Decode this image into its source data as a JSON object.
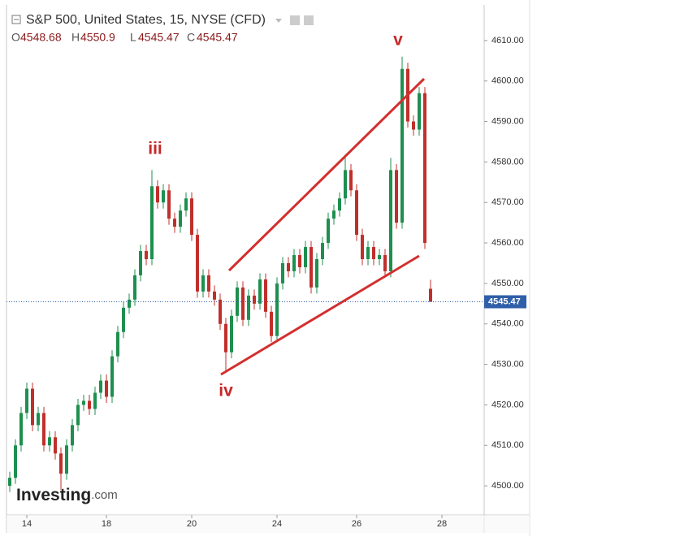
{
  "chart_data": {
    "type": "candlestick",
    "title": "S&P 500, United States, 15, NYSE (CFD)",
    "ohlc_labels": [
      "O",
      "H",
      "L",
      "C"
    ],
    "annotations": [
      "iii",
      "iv",
      "v"
    ],
    "watermark": {
      "brand": "Investing",
      "suffix": ".com"
    },
    "up_color": "#1e8f4e",
    "down_color": "#c0302b",
    "last_price_color": "#2f5fa8",
    "categories": [
      null,
      null,
      null,
      "14",
      null,
      null,
      null,
      null,
      null,
      null,
      null,
      null,
      null,
      null,
      null,
      null,
      null,
      "18",
      null,
      null,
      null,
      null,
      null,
      null,
      null,
      null,
      null,
      null,
      null,
      null,
      null,
      null,
      "20",
      null,
      null,
      null,
      null,
      null,
      null,
      null,
      null,
      null,
      null,
      null,
      null,
      null,
      null,
      "24",
      null,
      null,
      null,
      null,
      null,
      null,
      null,
      null,
      null,
      null,
      null,
      null,
      null,
      "26",
      null,
      null,
      null,
      null,
      null,
      null,
      null,
      null,
      null,
      null,
      null,
      null,
      null,
      null,
      "28",
      null,
      null,
      null,
      null,
      null,
      null,
      null
    ],
    "open": [
      4500,
      4502,
      4510,
      4518,
      4524,
      4515,
      4518,
      4510,
      4512,
      4508,
      4503,
      4510,
      4515,
      4520,
      4521,
      4519,
      4523,
      4526,
      4522,
      4532,
      4538,
      4544,
      4546,
      4552,
      4558,
      4556,
      4574,
      4570,
      4573,
      4566,
      4564,
      4568,
      4571,
      4562,
      4548,
      4552,
      4548,
      4546,
      4540,
      4533,
      4542,
      4549,
      4541,
      4547,
      4545,
      4551,
      4543,
      4537,
      4550,
      4555,
      4553,
      4557,
      4554,
      4559,
      4549,
      4556,
      4560,
      4566,
      4568,
      4571,
      4578,
      4573,
      4562,
      4556,
      4559,
      4556,
      4557,
      4553,
      4578,
      4565,
      4603,
      4590,
      4588,
      4597,
      4548.68,
      null,
      null,
      null,
      null,
      null,
      null,
      null,
      null,
      null
    ],
    "high": [
      4503.5,
      4511.5,
      4519.5,
      4525.5,
      4525.5,
      4519.5,
      4519.5,
      4513.5,
      4513.5,
      4509.5,
      4511.5,
      4516.5,
      4521.5,
      4522.5,
      4522.5,
      4524.5,
      4527.5,
      4527.5,
      4533.5,
      4539.5,
      4545.5,
      4547.5,
      4553.5,
      4559.5,
      4559.5,
      4578,
      4575.5,
      4574.5,
      4574.5,
      4567.5,
      4569.5,
      4572.5,
      4572.5,
      4563.5,
      4553.5,
      4553.5,
      4549.5,
      4547.5,
      4541.5,
      4543.5,
      4550.5,
      4550.5,
      4548.5,
      4548.5,
      4552.5,
      4552.5,
      4544.5,
      4551.5,
      4556.5,
      4556.5,
      4558.5,
      4558.5,
      4560.5,
      4560.5,
      4557.5,
      4561.5,
      4567.5,
      4569.5,
      4572.5,
      4581,
      4579.5,
      4574.5,
      4563.5,
      4560.5,
      4560.5,
      4558.5,
      4558.5,
      4581,
      4579.5,
      4606,
      4604.5,
      4591.5,
      4598.5,
      4598.5,
      4550.9,
      null,
      null,
      null,
      null,
      null,
      null,
      null,
      null,
      null
    ],
    "low": [
      4498.5,
      4500.5,
      4508.5,
      4516.5,
      4513.5,
      4513.5,
      4508.5,
      4508.5,
      4506.5,
      4499,
      4501.5,
      4508.5,
      4513.5,
      4518.5,
      4517.5,
      4517.5,
      4521.5,
      4520.5,
      4520.5,
      4530.5,
      4536.5,
      4542.5,
      4544.5,
      4550.5,
      4554.5,
      4554.5,
      4568.5,
      4568.5,
      4564.5,
      4562.5,
      4562.5,
      4566.5,
      4560.5,
      4546.5,
      4546.5,
      4546.5,
      4544.5,
      4538.5,
      4528,
      4531.5,
      4540.5,
      4539.5,
      4539.5,
      4543.5,
      4543.5,
      4541.5,
      4535.5,
      4535.5,
      4548.5,
      4551.5,
      4551.5,
      4552.5,
      4552.5,
      4547.5,
      4547.5,
      4554.5,
      4558.5,
      4564.5,
      4566.5,
      4569.5,
      4571.5,
      4560.5,
      4554.5,
      4554.5,
      4554.5,
      4554.5,
      4551.5,
      4551.5,
      4563.5,
      4563.5,
      4588.5,
      4586.5,
      4586.5,
      4558.5,
      4545.47,
      null,
      null,
      null,
      null,
      null,
      null,
      null,
      null,
      null
    ],
    "close": [
      4502,
      4510,
      4518,
      4524,
      4515,
      4518,
      4510,
      4512,
      4508,
      4503,
      4510,
      4515,
      4520,
      4521,
      4519,
      4523,
      4526,
      4522,
      4532,
      4538,
      4544,
      4546,
      4552,
      4558,
      4556,
      4574,
      4570,
      4573,
      4566,
      4564,
      4568,
      4571,
      4562,
      4548,
      4552,
      4548,
      4546,
      4540,
      4533,
      4542,
      4549,
      4541,
      4547,
      4545,
      4551,
      4543,
      4537,
      4550,
      4555,
      4553,
      4557,
      4554,
      4559,
      4549,
      4556,
      4560,
      4566,
      4568,
      4571,
      4578,
      4573,
      4562,
      4556,
      4559,
      4556,
      4557,
      4553,
      4578,
      4565,
      4603,
      4590,
      4588,
      4597,
      4560,
      4545.47,
      null,
      null,
      null,
      null,
      null,
      null,
      null,
      null,
      null
    ],
    "ylim": [
      4492.8,
      4618.4
    ],
    "yticks": [
      {
        "value": 4500,
        "label": "4500.00"
      },
      {
        "value": 4510,
        "label": "4510.00"
      },
      {
        "value": 4520,
        "label": "4520.00"
      },
      {
        "value": 4530,
        "label": "4530.00"
      },
      {
        "value": 4540,
        "label": "4540.00"
      },
      {
        "value": 4550,
        "label": "4550.00"
      },
      {
        "value": 4560,
        "label": "4560.00"
      },
      {
        "value": 4570,
        "label": "4570.00"
      },
      {
        "value": 4580,
        "label": "4580.00"
      },
      {
        "value": 4590,
        "label": "4590.00"
      },
      {
        "value": 4600,
        "label": "4600.00"
      },
      {
        "value": 4610,
        "label": "4610.00"
      }
    ]
  }
}
